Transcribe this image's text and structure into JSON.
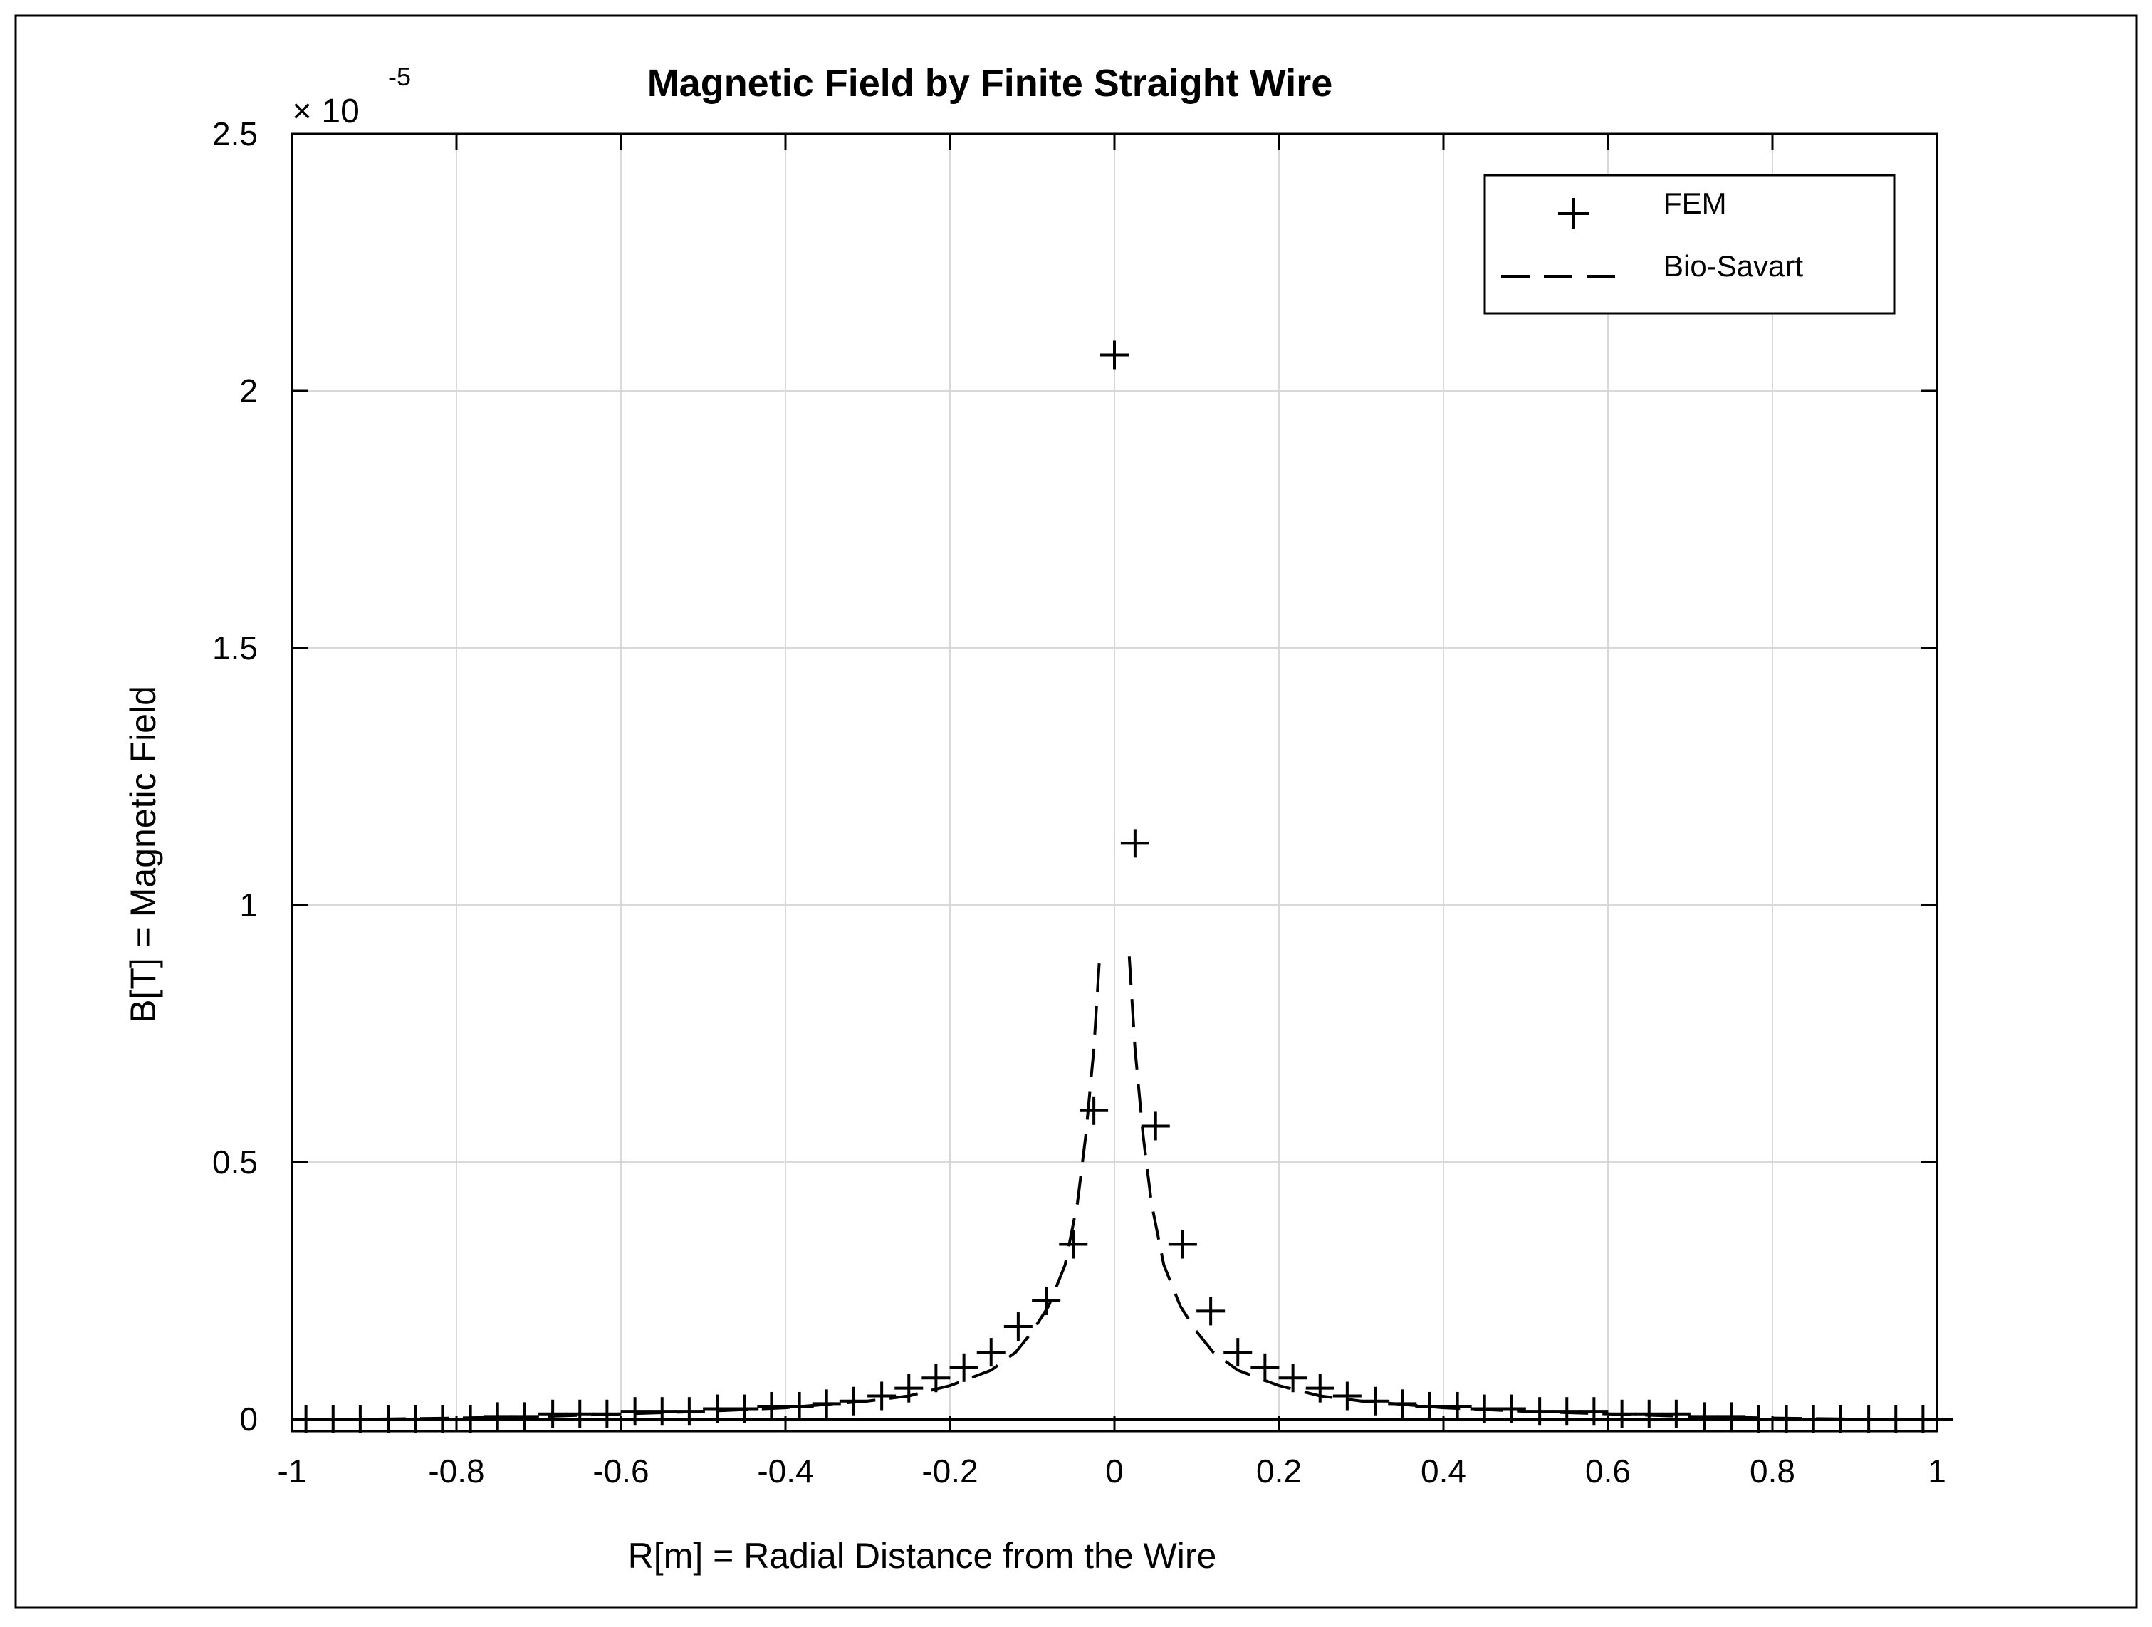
{
  "chart_data": {
    "type": "scatter",
    "title": "Magnetic Field by Finite Straight Wire",
    "xlabel": "R[m] = Radial Distance from the Wire",
    "ylabel": "B[T] = Magnetic Field",
    "y_exponent_label": "× 10",
    "y_exponent_power": "-5",
    "xlim": [
      -1,
      1
    ],
    "ylim": [
      0,
      2.5
    ],
    "y_unit_scale": 1e-05,
    "x_ticks": [
      -1,
      -0.8,
      -0.6,
      -0.4,
      -0.2,
      0,
      0.2,
      0.4,
      0.6,
      0.8,
      1
    ],
    "x_tick_labels": [
      "-1",
      "-0.8",
      "-0.6",
      "-0.4",
      "-0.2",
      "0",
      "0.2",
      "0.4",
      "0.6",
      "0.8",
      "1"
    ],
    "y_ticks": [
      0,
      0.5,
      1,
      1.5,
      2,
      2.5
    ],
    "y_tick_labels": [
      "0",
      "0.5",
      "1",
      "1.5",
      "2",
      "2.5"
    ],
    "grid": true,
    "legend_position": "top-right",
    "series": [
      {
        "name": "FEM",
        "style": "plus-markers",
        "color": "#000000",
        "x": [
          -0.983,
          -0.95,
          -0.917,
          -0.883,
          -0.85,
          -0.817,
          -0.783,
          -0.75,
          -0.717,
          -0.683,
          -0.65,
          -0.617,
          -0.583,
          -0.55,
          -0.517,
          -0.483,
          -0.45,
          -0.417,
          -0.383,
          -0.35,
          -0.317,
          -0.283,
          -0.25,
          -0.217,
          -0.183,
          -0.15,
          -0.117,
          -0.083,
          -0.05,
          -0.025,
          0.0,
          0.025,
          0.05,
          0.083,
          0.117,
          0.15,
          0.183,
          0.217,
          0.25,
          0.283,
          0.317,
          0.35,
          0.383,
          0.417,
          0.45,
          0.483,
          0.517,
          0.55,
          0.583,
          0.617,
          0.65,
          0.683,
          0.717,
          0.75,
          0.783,
          0.817,
          0.85,
          0.883,
          0.917,
          0.95,
          0.983
        ],
        "y": [
          0.0,
          0.0,
          0.0,
          0.0,
          0.0,
          0.0,
          0.0,
          0.005,
          0.005,
          0.01,
          0.01,
          0.01,
          0.015,
          0.015,
          0.015,
          0.02,
          0.02,
          0.025,
          0.025,
          0.03,
          0.035,
          0.045,
          0.06,
          0.08,
          0.1,
          0.13,
          0.18,
          0.23,
          0.34,
          0.6,
          2.07,
          1.12,
          0.57,
          0.34,
          0.21,
          0.13,
          0.1,
          0.08,
          0.06,
          0.045,
          0.035,
          0.03,
          0.025,
          0.025,
          0.02,
          0.02,
          0.015,
          0.015,
          0.015,
          0.01,
          0.01,
          0.01,
          0.005,
          0.005,
          0.0,
          0.0,
          0.0,
          0.0,
          0.0,
          0.0,
          0.0
        ]
      },
      {
        "name": "Bio-Savart",
        "style": "dashed-line",
        "color": "#000000",
        "x": [
          -1.0,
          -0.9,
          -0.8,
          -0.7,
          -0.6,
          -0.5,
          -0.4,
          -0.3,
          -0.25,
          -0.2,
          -0.15,
          -0.12,
          -0.1,
          -0.08,
          -0.06,
          -0.045,
          -0.035,
          -0.025,
          -0.018,
          null,
          0.018,
          0.025,
          0.035,
          0.045,
          0.06,
          0.08,
          0.1,
          0.12,
          0.15,
          0.2,
          0.25,
          0.3,
          0.4,
          0.5,
          0.6,
          0.7,
          0.8,
          0.9,
          1.0
        ],
        "y": [
          0.0,
          0.0,
          0.002,
          0.005,
          0.01,
          0.015,
          0.022,
          0.035,
          0.045,
          0.065,
          0.095,
          0.13,
          0.17,
          0.22,
          0.3,
          0.42,
          0.55,
          0.72,
          0.9,
          null,
          0.9,
          0.72,
          0.55,
          0.42,
          0.3,
          0.22,
          0.17,
          0.13,
          0.095,
          0.065,
          0.045,
          0.035,
          0.022,
          0.015,
          0.01,
          0.005,
          0.002,
          0.0,
          0.0
        ]
      }
    ]
  }
}
